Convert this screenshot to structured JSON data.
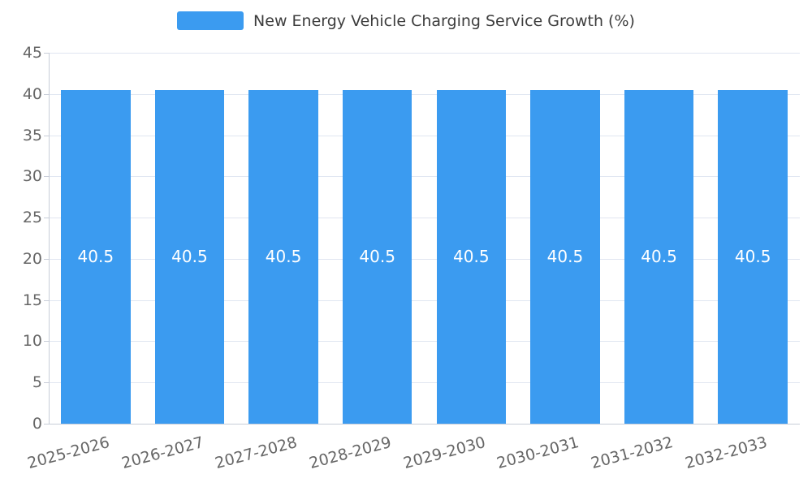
{
  "legend": {
    "label": "New Energy Vehicle Charging Service Growth (%)"
  },
  "chart_data": {
    "type": "bar",
    "title": "New Energy Vehicle Charging Service Growth (%)",
    "categories": [
      "2025-2026",
      "2026-2027",
      "2027-2028",
      "2028-2029",
      "2029-2030",
      "2030-2031",
      "2031-2032",
      "2032-2033"
    ],
    "values": [
      40.5,
      40.5,
      40.5,
      40.5,
      40.5,
      40.5,
      40.5,
      40.5
    ],
    "xlabel": "",
    "ylabel": "",
    "ylim": [
      0,
      45
    ],
    "ytick_step": 5,
    "yticks": [
      0,
      5,
      10,
      15,
      20,
      25,
      30,
      35,
      40,
      45
    ],
    "grid": true,
    "legend_position": "top",
    "bar_color": "#3b9bf0",
    "bar_value_label_color": "#ffffff",
    "axis_text_color": "#666666",
    "gridline_color": "#e0e6f1"
  }
}
